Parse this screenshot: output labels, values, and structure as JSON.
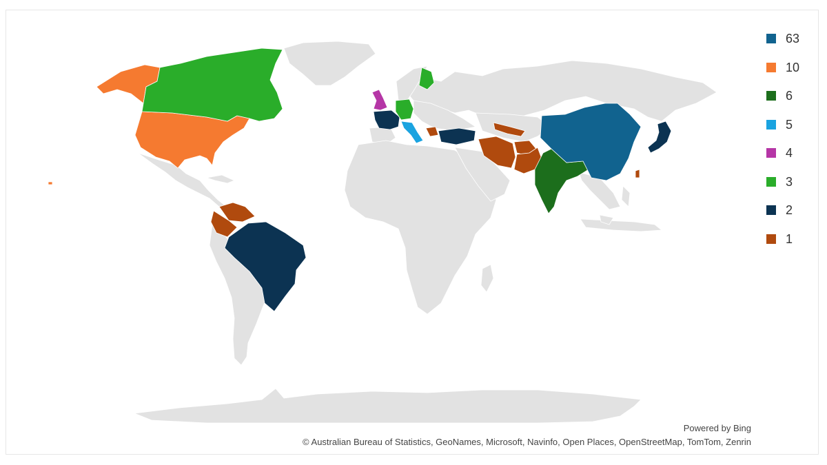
{
  "map": {
    "base_land_color": "#e2e2e2",
    "legend": [
      {
        "label": "63",
        "color": "#11638f"
      },
      {
        "label": "10",
        "color": "#f57a30"
      },
      {
        "label": "6",
        "color": "#1c6e1c"
      },
      {
        "label": "5",
        "color": "#1aa3e0"
      },
      {
        "label": "4",
        "color": "#b536a6"
      },
      {
        "label": "3",
        "color": "#2aad2a"
      },
      {
        "label": "2",
        "color": "#0c3352"
      },
      {
        "label": "1",
        "color": "#b04a0e"
      }
    ],
    "countries": [
      {
        "name": "China",
        "value": 63
      },
      {
        "name": "United States",
        "value": 10
      },
      {
        "name": "India",
        "value": 6
      },
      {
        "name": "Italy",
        "value": 5
      },
      {
        "name": "United Kingdom",
        "value": 4
      },
      {
        "name": "Canada",
        "value": 3
      },
      {
        "name": "Germany",
        "value": 3
      },
      {
        "name": "Finland",
        "value": 3
      },
      {
        "name": "Brazil",
        "value": 2
      },
      {
        "name": "France",
        "value": 2
      },
      {
        "name": "Turkey",
        "value": 2
      },
      {
        "name": "Japan",
        "value": 2
      },
      {
        "name": "Venezuela",
        "value": 1
      },
      {
        "name": "Colombia",
        "value": 1
      },
      {
        "name": "Iran",
        "value": 1
      },
      {
        "name": "Afghanistan",
        "value": 1
      },
      {
        "name": "Pakistan",
        "value": 1
      },
      {
        "name": "Uzbekistan",
        "value": 1
      },
      {
        "name": "Taiwan",
        "value": 1
      },
      {
        "name": "Greece",
        "value": 1
      }
    ]
  },
  "footer": {
    "powered_by": "Powered by Bing",
    "copyright": "© Australian Bureau of Statistics, GeoNames, Microsoft, Navinfo, Open Places, OpenStreetMap, TomTom, Zenrin"
  }
}
